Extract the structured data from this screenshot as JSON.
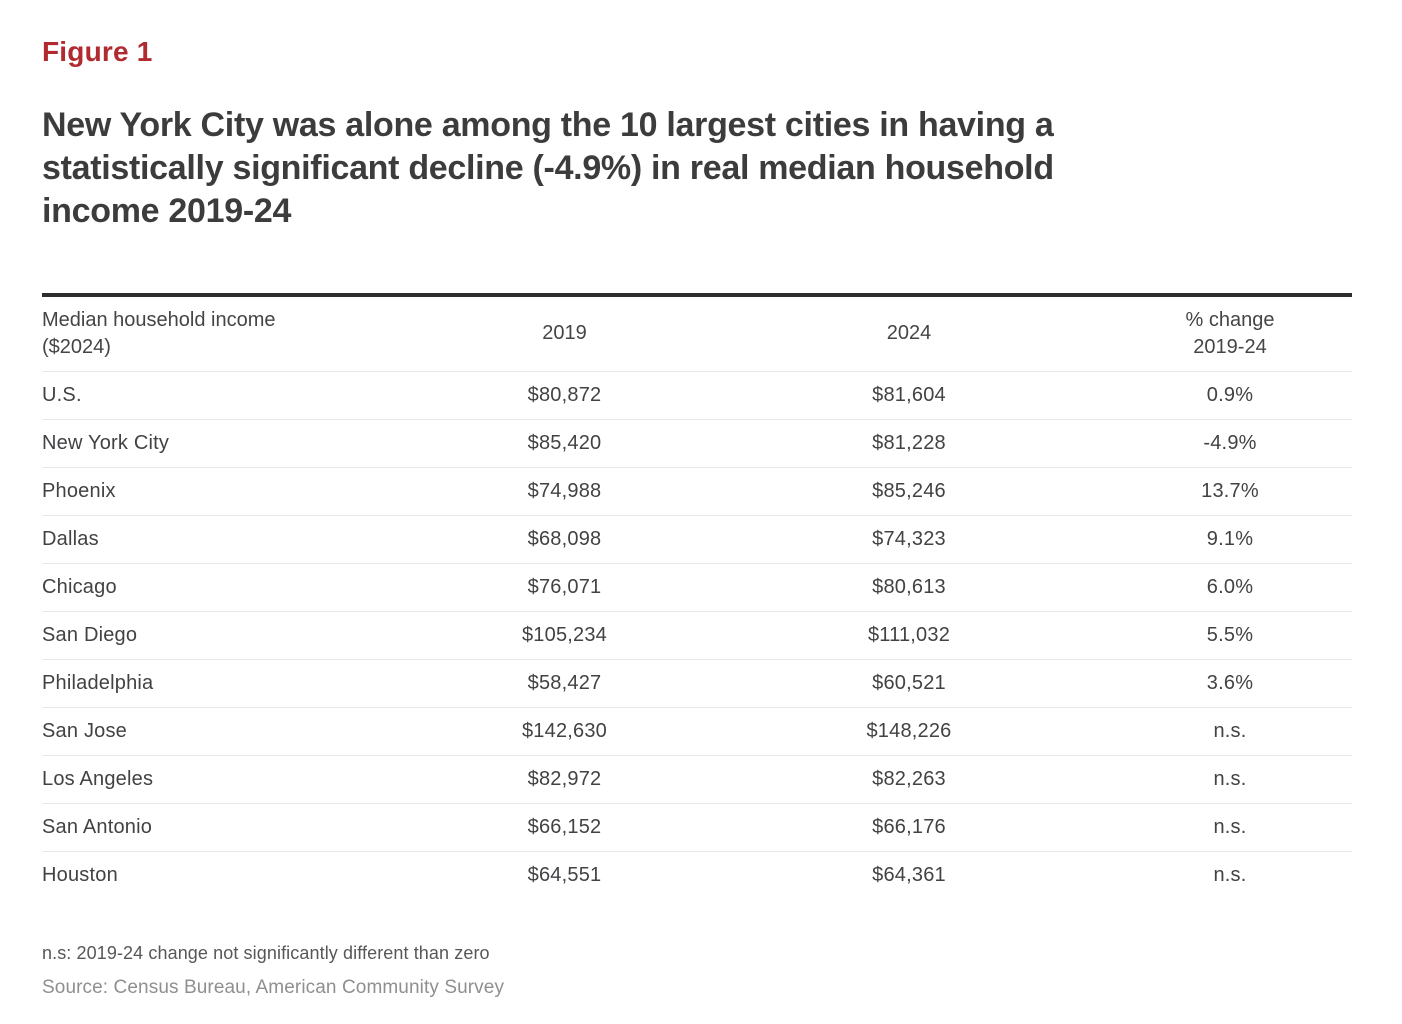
{
  "figure_label": "Figure 1",
  "title_lines": [
    "New York City was alone among the 10 largest cities in having a",
    "statistically significant decline (-4.9%) in real median household",
    "income 2019-24"
  ],
  "colors": {
    "figure_label_red": "#b02a30",
    "title_text": "#3c3c3c",
    "table_text": "#424245",
    "table_top_rule": "#2d2d2d",
    "row_separator": "#e8e8e8",
    "footnote_text": "#57575a",
    "source_text": "#8f8f91"
  },
  "table": {
    "header": {
      "col1_line1": "Median household income",
      "col1_line2": "($2024)",
      "col2": "2019",
      "col3": "2024",
      "col4_line1": "% change",
      "col4_line2": "2019-24"
    },
    "rows": [
      {
        "label": "U.S.",
        "y2019": "$80,872",
        "y2024": "$81,604",
        "change": "0.9%"
      },
      {
        "label": "New York City",
        "y2019": "$85,420",
        "y2024": "$81,228",
        "change": "-4.9%"
      },
      {
        "label": "Phoenix",
        "y2019": "$74,988",
        "y2024": "$85,246",
        "change": "13.7%"
      },
      {
        "label": "Dallas",
        "y2019": "$68,098",
        "y2024": "$74,323",
        "change": "9.1%"
      },
      {
        "label": "Chicago",
        "y2019": "$76,071",
        "y2024": "$80,613",
        "change": "6.0%"
      },
      {
        "label": "San Diego",
        "y2019": "$105,234",
        "y2024": "$111,032",
        "change": "5.5%"
      },
      {
        "label": "Philadelphia",
        "y2019": "$58,427",
        "y2024": "$60,521",
        "change": "3.6%"
      },
      {
        "label": "San Jose",
        "y2019": "$142,630",
        "y2024": "$148,226",
        "change": "n.s."
      },
      {
        "label": "Los Angeles",
        "y2019": "$82,972",
        "y2024": "$82,263",
        "change": "n.s."
      },
      {
        "label": "San Antonio",
        "y2019": "$66,152",
        "y2024": "$66,176",
        "change": "n.s."
      },
      {
        "label": "Houston",
        "y2019": "$64,551",
        "y2024": "$64,361",
        "change": "n.s."
      }
    ]
  },
  "footnotes": {
    "ns": "n.s: 2019-24 change not significantly different than zero",
    "source": "Source: Census Bureau, American Community Survey"
  },
  "chart_data": {
    "type": "table",
    "title": "New York City was alone among the 10 largest cities in having a statistically significant decline (-4.9%) in real median household income 2019-24",
    "columns": [
      "Median household income ($2024)",
      "2019",
      "2024",
      "% change 2019-24"
    ],
    "rows": [
      [
        "U.S.",
        80872,
        81604,
        "0.9%"
      ],
      [
        "New York City",
        85420,
        81228,
        "-4.9%"
      ],
      [
        "Phoenix",
        74988,
        85246,
        "13.7%"
      ],
      [
        "Dallas",
        68098,
        74323,
        "9.1%"
      ],
      [
        "Chicago",
        76071,
        80613,
        "6.0%"
      ],
      [
        "San Diego",
        105234,
        111032,
        "5.5%"
      ],
      [
        "Philadelphia",
        58427,
        60521,
        "3.6%"
      ],
      [
        "San Jose",
        142630,
        148226,
        "n.s."
      ],
      [
        "Los Angeles",
        82972,
        82263,
        "n.s."
      ],
      [
        "San Antonio",
        66152,
        66176,
        "n.s."
      ],
      [
        "Houston",
        64551,
        64361,
        "n.s."
      ]
    ],
    "note": "n.s: 2019-24 change not significantly different than zero",
    "source": "Census Bureau, American Community Survey"
  }
}
